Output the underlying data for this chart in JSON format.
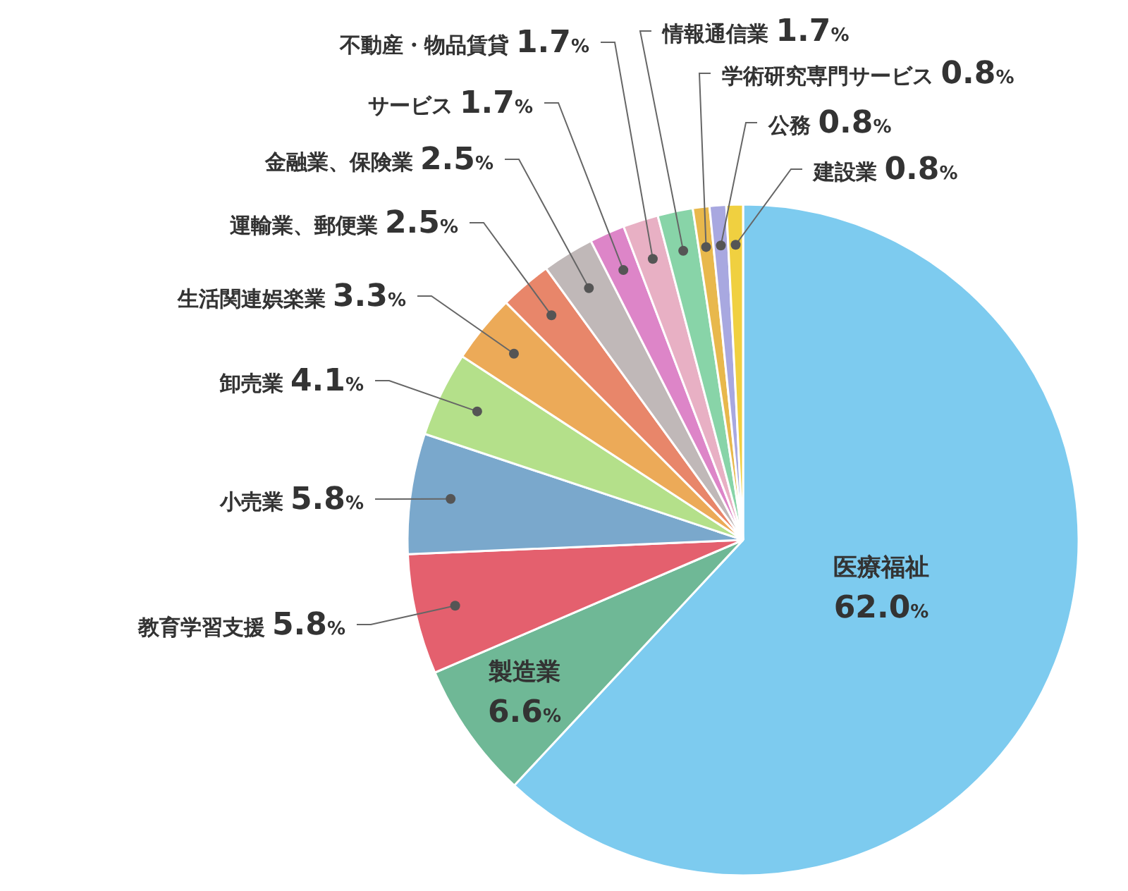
{
  "chart_data": {
    "type": "pie",
    "categories": [
      "医療福祉",
      "製造業",
      "教育学習支援",
      "小売業",
      "卸売業",
      "生活関連娯楽業",
      "運輸業、郵便業",
      "金融業、保険業",
      "サービス",
      "不動産・物品賃貸",
      "情報通信業",
      "学術研究専門サービス",
      "公務",
      "建設業"
    ],
    "values": [
      62.0,
      6.6,
      5.8,
      5.8,
      4.1,
      3.3,
      2.5,
      2.5,
      1.7,
      1.7,
      1.7,
      0.8,
      0.8,
      0.8
    ],
    "value_labels": [
      "62.0%",
      "6.6%",
      "5.8%",
      "5.8%",
      "4.1%",
      "3.3%",
      "2.5%",
      "2.5%",
      "1.7%",
      "1.7%",
      "1.7%",
      "0.8%",
      "0.8%",
      "0.8%"
    ],
    "colors": [
      "#7dcbef",
      "#6fb896",
      "#e4606e",
      "#7aa8cc",
      "#b4e08a",
      "#ecaa58",
      "#e8866a",
      "#c0b8b8",
      "#dd85c8",
      "#e8b0c4",
      "#88d4a8",
      "#e8b84c",
      "#a8a8e0",
      "#f0d040"
    ]
  }
}
